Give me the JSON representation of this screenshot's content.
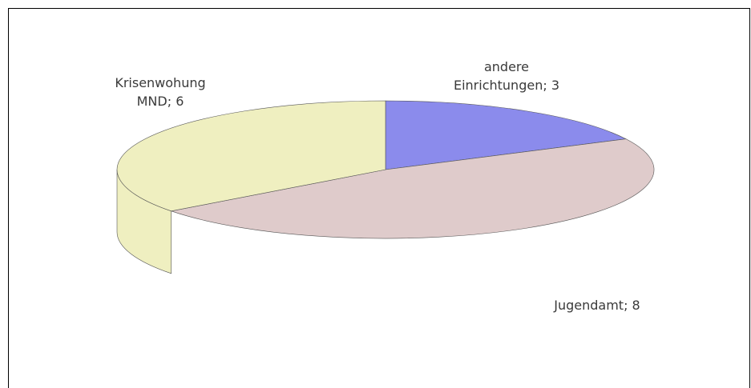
{
  "chart_data": {
    "type": "pie3d",
    "categories": [
      "andere Einrichtungen",
      "Jugendamt",
      "Krisenwohung MND"
    ],
    "values": [
      3,
      8,
      6
    ],
    "value_labels": [
      "andere Einrichtungen; 3",
      "Jugendamt; 8",
      "Krisenwohung MND; 6"
    ],
    "colors": [
      "#8b8bec",
      "#dfcbcb",
      "#efefc0"
    ]
  }
}
